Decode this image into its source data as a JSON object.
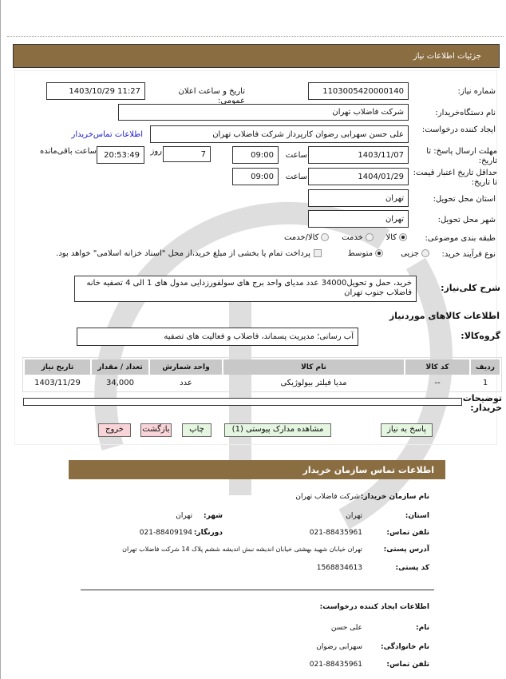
{
  "header": {
    "title": "جزئیات اطلاعات نیاز"
  },
  "form": {
    "need_number_label": "شماره نیاز:",
    "need_number": "1103005420000140",
    "announce_label": "تاریخ و ساعت اعلان عمومی:",
    "announce_value": "1403/10/29 11:27",
    "buyer_label": "نام دستگاه‌خریدار:",
    "buyer": "شرکت فاضلاب تهران",
    "creator_label": "ایجاد کننده درخواست:",
    "creator": "علی حسن سهرابی رضوان کارپرداز شرکت فاضلاب تهران",
    "contact_link": "اطلاعات تماس‌خریدار",
    "deadline_label": "مهلت ارسال پاسخ: تا تاریخ:",
    "deadline_date": "1403/11/07",
    "time_label": "ساعت",
    "deadline_time": "09:00",
    "days_value": "7",
    "days_label": "روز",
    "remaining_time": "20:53:49",
    "remaining_label": "ساعت باقی‌مانده",
    "validity_label": "حداقل تاریخ اعتبار قیمت: تا تاریخ:",
    "validity_date": "1404/01/29",
    "validity_time": "09:00",
    "province_label": "استان محل تحویل:",
    "province": "تهران",
    "city_label": "شهر محل تحویل:",
    "city": "تهران",
    "category_label": "طبقه بندی موضوعی:",
    "category_options": [
      "کالا",
      "خدمت",
      "کالا/خدمت"
    ],
    "category_selected": "کالا",
    "process_label": "نوع فرآیند خرید:",
    "process_options": [
      "جزیی",
      "متوسط"
    ],
    "process_selected": "متوسط",
    "payment_note": "پرداخت تمام یا بخشی از مبلغ خرید،از محل \"اسناد خزانه اسلامی\" خواهد بود."
  },
  "description": {
    "label": "شرح کلی‌نیاز:",
    "text": "خرید، حمل و تحویل34000 عدد مدیای واحد برج های سولفورزدایی مدول های 1 الی 4 تصفیه خانه فاضلاب جنوب تهران"
  },
  "goods": {
    "title": "اطلاعات کالاهای موردنیاز",
    "group_label": "گروه‌کالا:",
    "group": "آب رسانی؛ مدیریت پسماند، فاضلاب و فعالیت های تصفیه",
    "columns": [
      "ردیف",
      "کد کالا",
      "نام کالا",
      "واحد شمارش",
      "تعداد / مقدار",
      "تاریخ نیاز"
    ],
    "rows": [
      [
        "1",
        "--",
        "مدیا فیلتر بیولوژیکی",
        "عدد",
        "34,000",
        "1403/11/29"
      ]
    ]
  },
  "notes": {
    "label": "توضیحات خریدار:",
    "value": ""
  },
  "buttons": {
    "reply": "پاسخ به نیاز",
    "docs": "مشاهده مدارک پیوستی (1)",
    "print": "چاپ",
    "back": "بازگشت",
    "exit": "خروج"
  },
  "contact": {
    "title": "اطلاعات تماس سازمان خریدار",
    "org_label": "نام سازمان خریدار:",
    "org": "شرکت فاضلاب تهران",
    "province_label": "استان:",
    "province": "تهران",
    "city_label": "شهر:",
    "city": "تهران",
    "phone_label": "تلفن تماس:",
    "phone": "021-88435961",
    "fax_label": "دورنگار:",
    "fax": "021-88409194",
    "address_label": "آدرس پستی:",
    "address": "تهران خیابان شهید بهشتی خیابان اندیشه نبش اندیشه ششم پلاک 14 شرکت فاضلاب تهران",
    "postal_label": "کد پستی:",
    "postal": "1568834613",
    "creator_title": "اطلاعات ایجاد کننده درخواست:",
    "name_label": "نام:",
    "name": "علی حسن",
    "family_label": "نام خانوادگی:",
    "family": "سهرابی رضوان",
    "cphone_label": "تلفن تماس:",
    "cphone": "021-88435961"
  },
  "colors": {
    "header_bar": "#8b6d42",
    "link": "#1a1ad0",
    "button_green": "#e4f6e0",
    "button_pink": "#f8d4d8"
  }
}
